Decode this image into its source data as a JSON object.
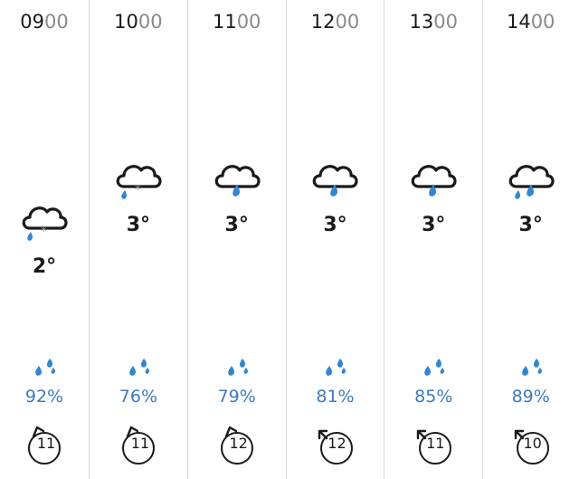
{
  "hours": [
    {
      "time_h": "09",
      "time_m": "00",
      "weather_icon": "sleet-icon",
      "temp": "2°",
      "precip": "92%",
      "wind": "11",
      "wind_dir": "ne"
    },
    {
      "time_h": "10",
      "time_m": "00",
      "weather_icon": "sleet-icon",
      "temp": "3°",
      "precip": "76%",
      "wind": "11",
      "wind_dir": "ne"
    },
    {
      "time_h": "11",
      "time_m": "00",
      "weather_icon": "light-rain-icon",
      "temp": "3°",
      "precip": "79%",
      "wind": "12",
      "wind_dir": "ne"
    },
    {
      "time_h": "12",
      "time_m": "00",
      "weather_icon": "light-rain-icon",
      "temp": "3°",
      "precip": "81%",
      "wind": "12",
      "wind_dir": "nw"
    },
    {
      "time_h": "13",
      "time_m": "00",
      "weather_icon": "light-rain-icon",
      "temp": "3°",
      "precip": "85%",
      "wind": "11",
      "wind_dir": "nw"
    },
    {
      "time_h": "14",
      "time_m": "00",
      "weather_icon": "rain-icon",
      "temp": "3°",
      "precip": "89%",
      "wind": "10",
      "wind_dir": "nw"
    }
  ],
  "colors": {
    "precip_blue": "#3b7bbf",
    "drop_blue": "#2e86d6",
    "divider": "#d8d8d8",
    "snow_grey": "#9a9a9a"
  }
}
